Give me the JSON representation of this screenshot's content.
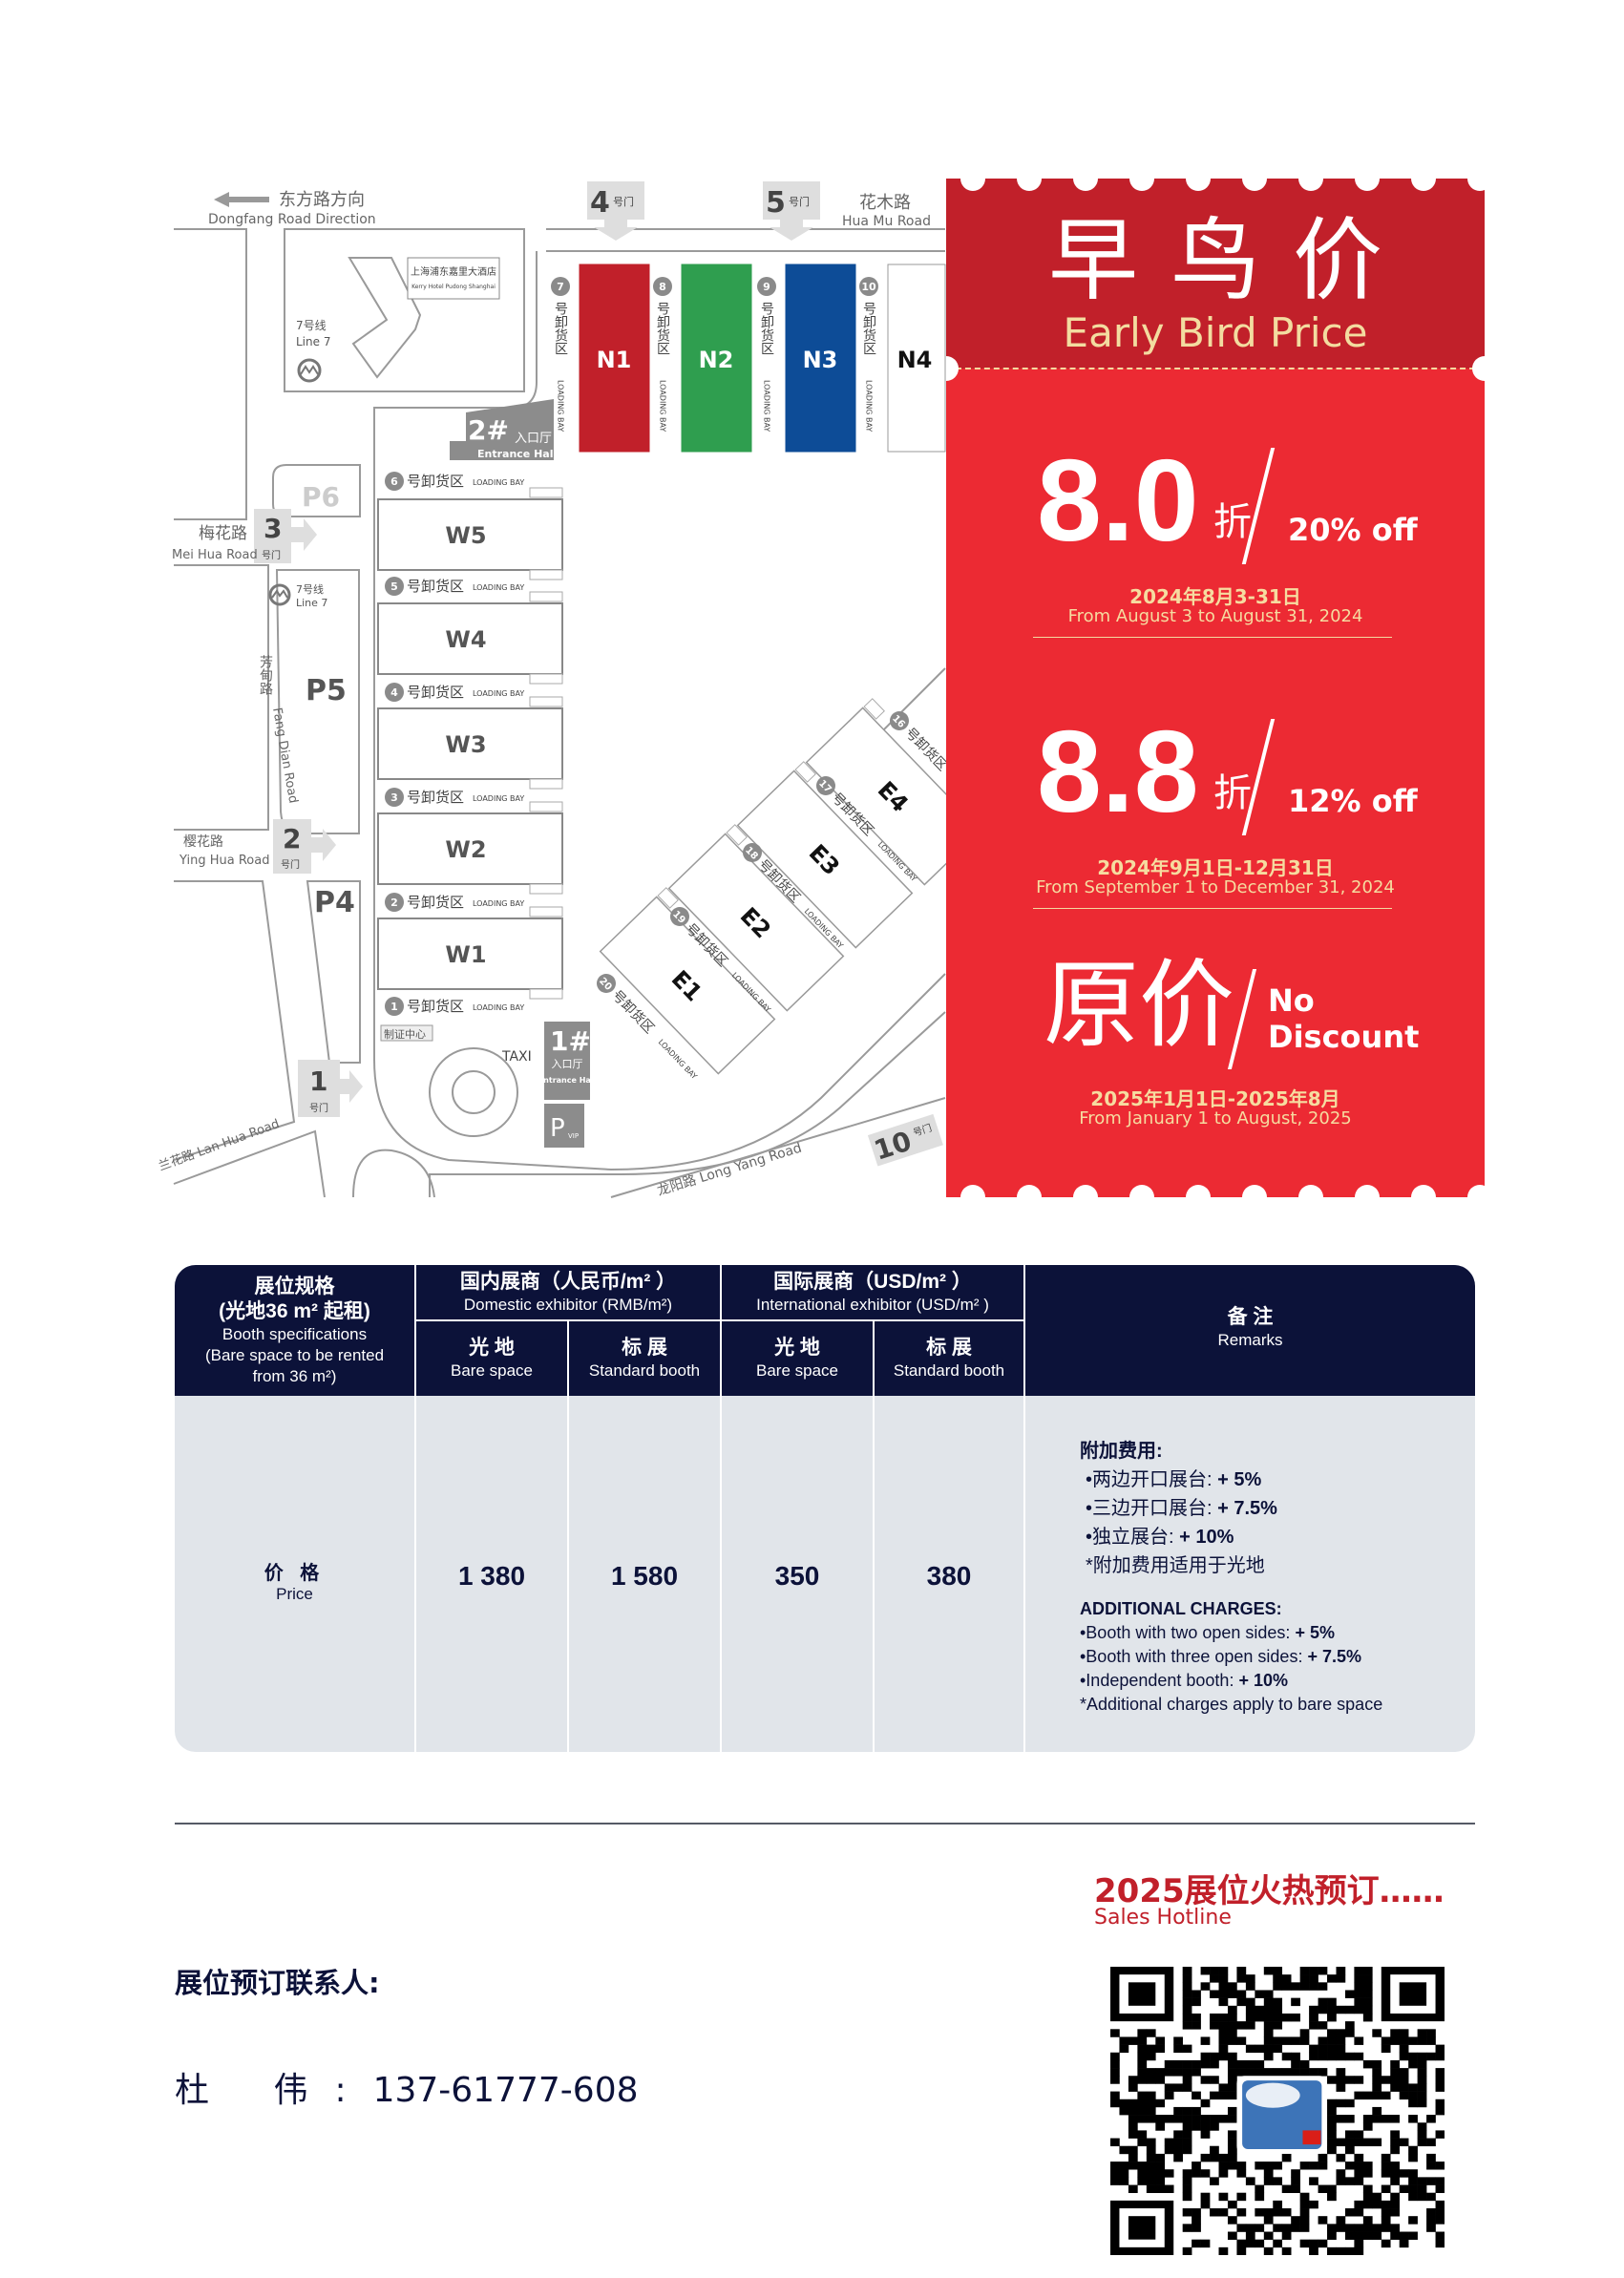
{
  "map": {
    "dongfang_zh": "东方路方向",
    "dongfang_en": "Dongfang Road Direction",
    "huamu_zh": "花木路",
    "huamu_en": "Hua Mu Road",
    "gate_suffix": "号门",
    "gates": [
      "1",
      "2",
      "3",
      "4",
      "5",
      "10"
    ],
    "hotel_zh": "上海浦东嘉里大酒店",
    "hotel_en": "Kerry Hotel Pudong Shanghai",
    "line7_zh": "7号线",
    "line7_en": "Line 7",
    "north_halls": [
      "N1",
      "N2",
      "N3",
      "N4"
    ],
    "north_colors": [
      "#c1202a",
      "#2f9e4f",
      "#0d4c97"
    ],
    "west_halls": [
      "W5",
      "W4",
      "W3",
      "W2",
      "W1"
    ],
    "east_halls": [
      "E1",
      "E2",
      "E3",
      "E4"
    ],
    "loading_zh": "号卸货区",
    "loading_en": "LOADING BAY",
    "loading_north": [
      "7",
      "8",
      "9",
      "10"
    ],
    "loading_west": [
      "6",
      "5",
      "4",
      "3",
      "2",
      "1"
    ],
    "loading_east": [
      "20",
      "19",
      "18",
      "17",
      "16"
    ],
    "entrance2_num": "2#",
    "entrance1_num": "1#",
    "entrance_zh": "入口厅",
    "entrance_en": "Entrance Hall",
    "parking": [
      "P6",
      "P5",
      "P4"
    ],
    "pvip": "P",
    "pvip_sub": "VIP",
    "meihua_zh": "梅花路",
    "meihua_en": "Mei Hua Road",
    "yinghua_zh": "樱花路",
    "yinghua_en": "Ying Hua Road",
    "fangdian_zh": "芳甸路",
    "fangdian_en": "Fang Dian Road",
    "lanhua": "兰花路 Lan Hua Road",
    "longyang": "龙阳路 Long Yang Road",
    "cert_center": "制证中心",
    "taxi": "TAXI"
  },
  "promo": {
    "title_zh": "早鸟价",
    "title_en": "Early Bird Price",
    "tiers": [
      {
        "rate": "8.0",
        "unit": "折",
        "off": "20% off",
        "date_zh": "2024年8月3-31日",
        "date_en": "From August 3 to August 31, 2024"
      },
      {
        "rate": "8.8",
        "unit": "折",
        "off": "12% off",
        "date_zh": "2024年9月1日-12月31日",
        "date_en": "From September 1 to December 31, 2024"
      },
      {
        "rate": "原价",
        "off_line1": "No",
        "off_line2": "Discount",
        "date_zh": "2025年1月1日-2025年8月",
        "date_en": "From January 1 to August, 2025"
      }
    ],
    "colors": {
      "header": "#c1202a",
      "body": "#ec2a33",
      "accent": "#f6dca0"
    }
  },
  "table": {
    "spec_zh1": "展位规格",
    "spec_zh2": "(光地36 m² 起租)",
    "spec_en1": "Booth specifications",
    "spec_en2": "(Bare space to be rented",
    "spec_en3": "from 36 m²)",
    "domestic_zh": "国内展商（人民币/m² ）",
    "domestic_en": "Domestic exhibitor (RMB/m²)",
    "intl_zh": "国际展商（USD/m² ）",
    "intl_en": "International exhibitor (USD/m² )",
    "bare_zh": "光 地",
    "bare_en": "Bare space",
    "std_zh": "标 展",
    "std_en": "Standard booth",
    "remarks_zh": "备 注",
    "remarks_en": "Remarks",
    "price_zh": "价 格",
    "price_en": "Price",
    "prices": [
      "1 380",
      "1 580",
      "350",
      "380"
    ],
    "remarks": {
      "zh_title": "附加费用:",
      "zh_items": [
        {
          "label": "•两边开口展台: ",
          "value": "+ 5%"
        },
        {
          "label": "•三边开口展台: ",
          "value": "+ 7.5%"
        },
        {
          "label": "•独立展台: ",
          "value": "+ 10%"
        }
      ],
      "zh_note": "*附加费用适用于光地",
      "en_title": "ADDITIONAL CHARGES:",
      "en_items": [
        {
          "label": "•Booth with two open sides: ",
          "value": "+ 5%"
        },
        {
          "label": "•Booth with three open sides: ",
          "value": "+ 7.5%"
        },
        {
          "label": "•Independent booth: ",
          "value": "+ 10%"
        }
      ],
      "en_note": "*Additional charges apply to bare space"
    },
    "colors": {
      "header": "#0c1239",
      "body": "#e1e5ea"
    }
  },
  "footer": {
    "hot_title": "2025展位火热预订……",
    "hotline": "Sales Hotline",
    "contact_label": "展位预订联系人:",
    "contact_name": "杜 伟:",
    "contact_phone": "137-61777-608"
  }
}
